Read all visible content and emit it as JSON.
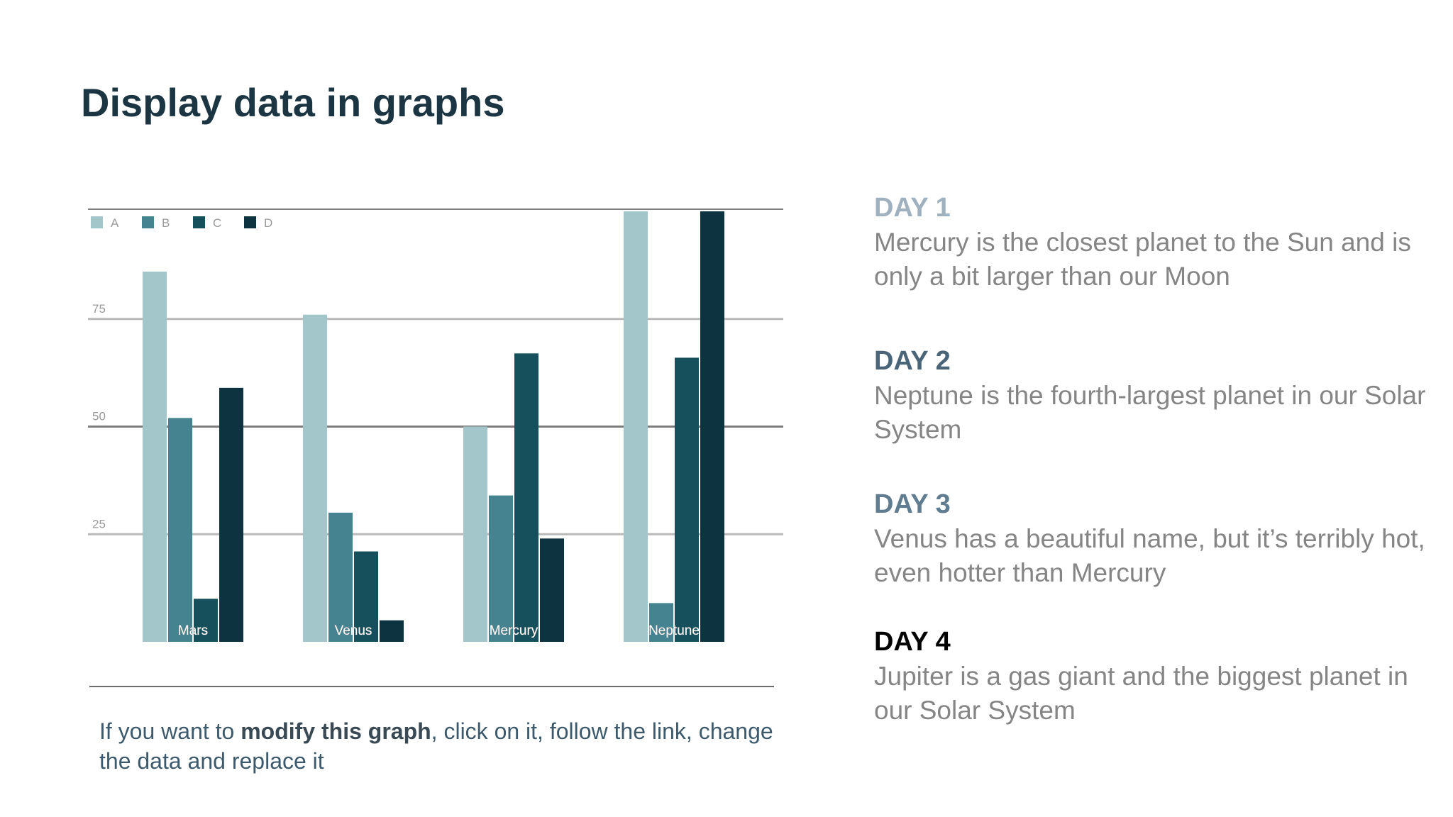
{
  "slide": {
    "title": "Display data in graphs"
  },
  "note": {
    "prefix": "If you want to ",
    "bold": "modify this graph",
    "suffix": ", click on it, follow the link, change the data and replace it"
  },
  "days": [
    {
      "title": "DAY 1",
      "text": "Mercury is the closest planet to the Sun and is only a bit larger than our Moon",
      "color": "#9fb0bf"
    },
    {
      "title": "DAY 2",
      "text": "Neptune is the fourth-largest planet in our Solar System",
      "color": "#4a6478"
    },
    {
      "title": "DAY 3",
      "text": "Venus has a beautiful name, but it’s terribly hot, even hotter than Mercury",
      "color": "#5f7c90"
    },
    {
      "title": "DAY 4",
      "text": "Jupiter is a gas giant and the biggest planet in our Solar System",
      "color": "#000000"
    }
  ],
  "chart_data": {
    "type": "bar",
    "categories": [
      "Mars",
      "Venus",
      "Mercury",
      "Neptune"
    ],
    "series": [
      {
        "name": "A",
        "values": [
          86,
          76,
          50,
          100
        ],
        "color": "#a3c6ca"
      },
      {
        "name": "B",
        "values": [
          52,
          30,
          34,
          9
        ],
        "color": "#468390"
      },
      {
        "name": "C",
        "values": [
          10,
          21,
          67,
          66
        ],
        "color": "#16505d"
      },
      {
        "name": "D",
        "values": [
          59,
          5,
          24,
          100
        ],
        "color": "#0d3340"
      }
    ],
    "yticks": [
      25,
      50,
      75
    ],
    "ylim": [
      0,
      100
    ],
    "grid": true,
    "legend": "top-left",
    "title": "",
    "xlabel": "",
    "ylabel": ""
  }
}
